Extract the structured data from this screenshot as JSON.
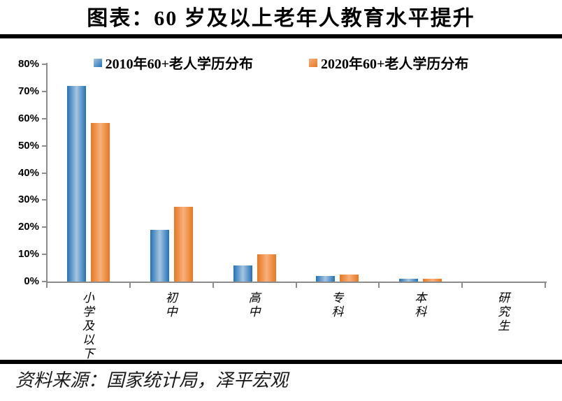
{
  "title": "图表：60 岁及以上老年人教育水平提升",
  "source_note": "资料来源：国家统计局，泽平宏观",
  "chart_data": {
    "type": "bar",
    "title": "图表：60 岁及以上老年人教育水平提升",
    "categories": [
      "小学及以下",
      "初中",
      "高中",
      "专科",
      "本科",
      "研究生"
    ],
    "series": [
      {
        "name": "2010年60+老人学历分布",
        "color": "#2272B8",
        "color_light": "#A6C5DF",
        "values": [
          72,
          19,
          6,
          2,
          1,
          0.1
        ]
      },
      {
        "name": "2020年60+老人学历分布",
        "color": "#E8771F",
        "color_light": "#F6B07C",
        "values": [
          58.5,
          27.5,
          10,
          2.5,
          1,
          0.1
        ]
      }
    ],
    "xlabel": "",
    "ylabel": "",
    "ylim": [
      0,
      80
    ],
    "ytick_step": 10,
    "ytick_suffix": "%",
    "legend_position": "top-center",
    "grid": false,
    "axis_color": "#8C8C8C"
  }
}
